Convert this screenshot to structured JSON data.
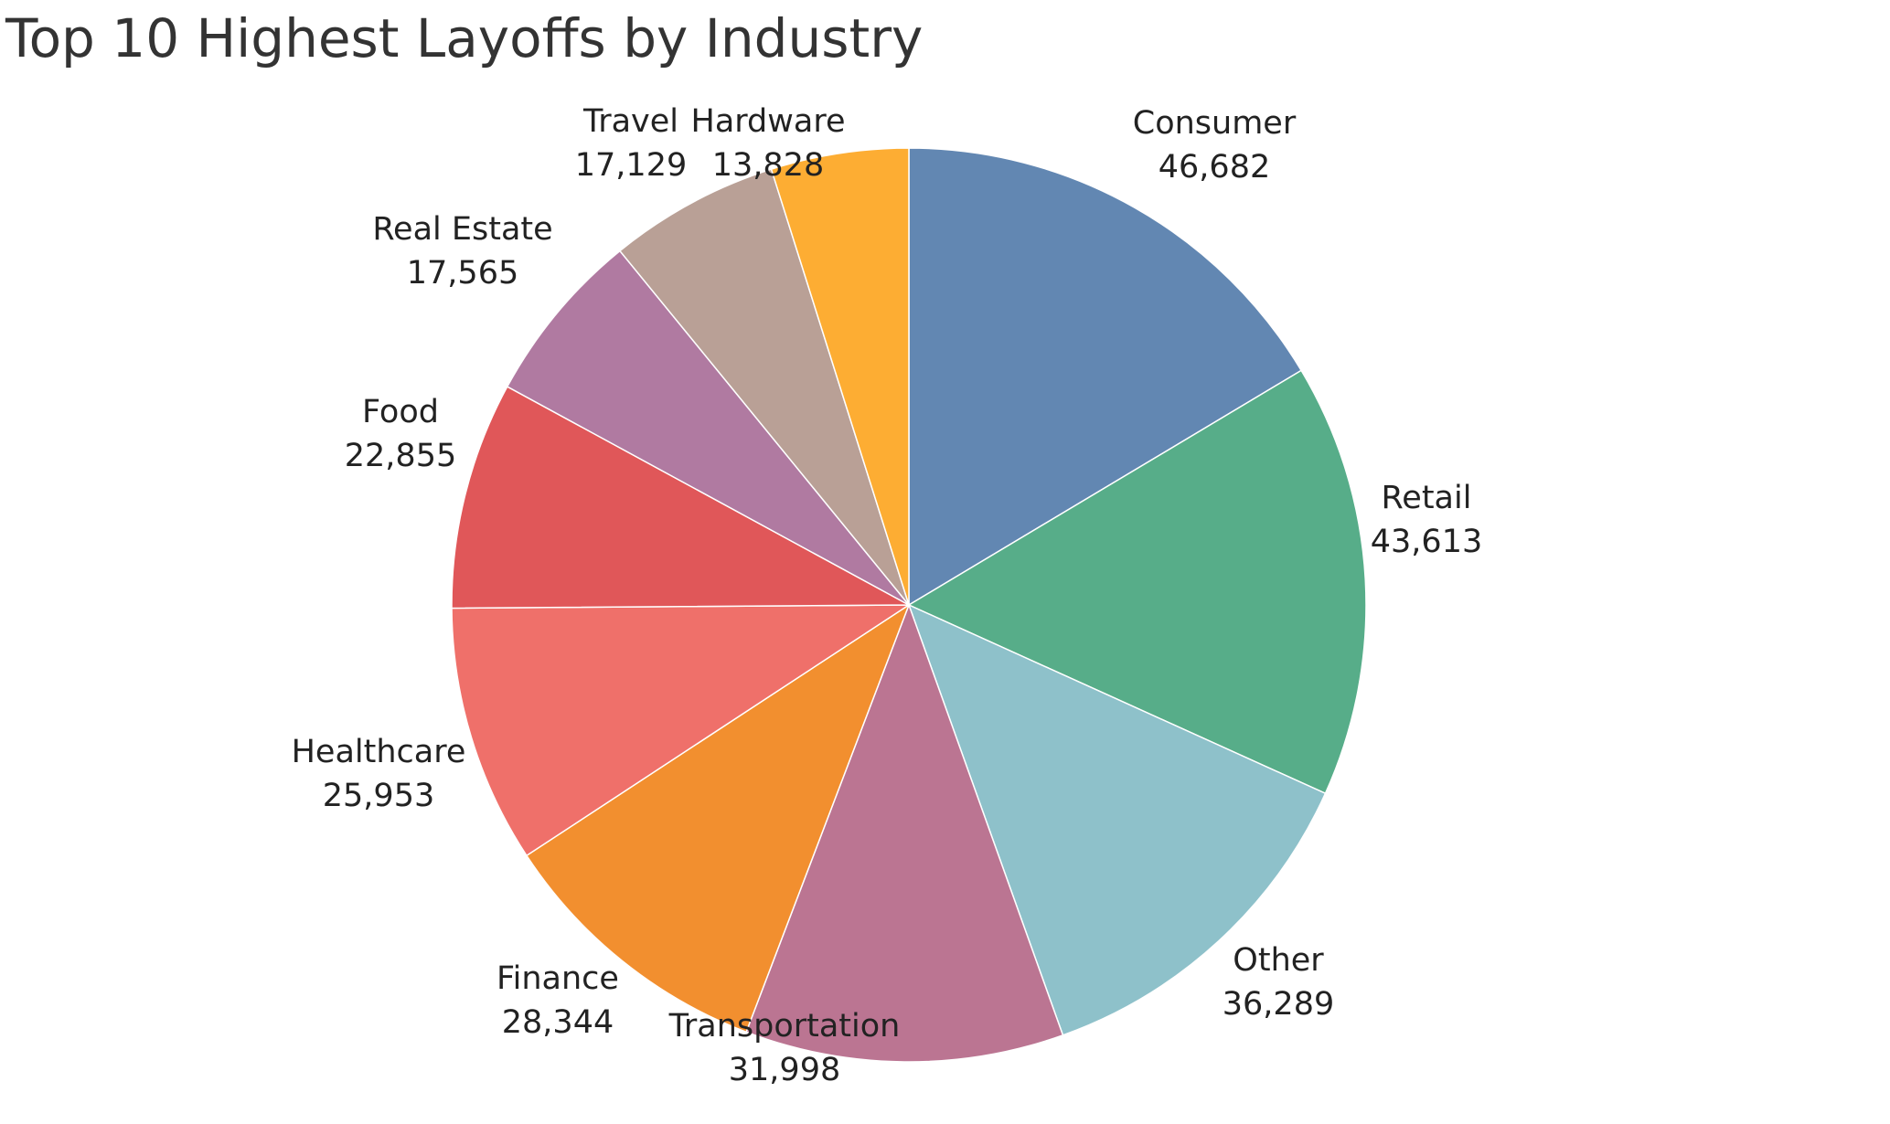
{
  "chart_data": {
    "type": "pie",
    "title": "Top 10 Highest Layoffs by Industry",
    "start": "top",
    "direction": "clockwise",
    "slices": [
      {
        "label": "Consumer",
        "value": 46682,
        "display": "46,682",
        "color": "#6287b2"
      },
      {
        "label": "Retail",
        "value": 43613,
        "display": "43,613",
        "color": "#57ad89"
      },
      {
        "label": "Other",
        "value": 36289,
        "display": "36,289",
        "color": "#8ec1ca"
      },
      {
        "label": "Transportation",
        "value": 31998,
        "display": "31,998",
        "color": "#bb7592"
      },
      {
        "label": "Finance",
        "value": 28344,
        "display": "28,344",
        "color": "#f28f2f"
      },
      {
        "label": "Healthcare",
        "value": 25953,
        "display": "25,953",
        "color": "#ef706a"
      },
      {
        "label": "Food",
        "value": 22855,
        "display": "22,855",
        "color": "#e05759"
      },
      {
        "label": "Real Estate",
        "value": 17565,
        "display": "17,565",
        "color": "#b07aa1"
      },
      {
        "label": "Travel",
        "value": 17129,
        "display": "17,129",
        "color": "#b9a096"
      },
      {
        "label": "Hardware",
        "value": 13828,
        "display": "13,828",
        "color": "#fdad33"
      }
    ]
  }
}
